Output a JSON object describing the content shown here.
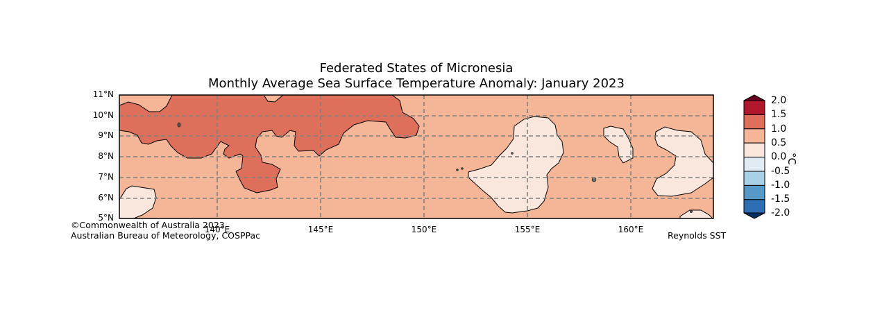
{
  "title_line1": "Federated States of Micronesia",
  "title_line2": "Monthly Average Sea Surface Temperature Anomaly: January 2023",
  "latitude_labels": [
    "11°N",
    "10°N",
    "9°N",
    "8°N",
    "7°N",
    "6°N",
    "5°N"
  ],
  "longitude_labels": [
    "140°E",
    "145°E",
    "150°E",
    "155°E",
    "160°E"
  ],
  "credit_line1": "©Commonwealth of Australia 2023",
  "credit_line2": "Australian Bureau of Meteorology, COSPPac",
  "dataset_label": "Reynolds SST",
  "colorbar": {
    "unit": "°C",
    "ticks": [
      "2.0",
      "1.5",
      "1.0",
      "0.5",
      "0.0",
      "-0.5",
      "-1.0",
      "-1.5",
      "-2.0"
    ],
    "colors": [
      "#b2182b",
      "#de6f5a",
      "#f5b697",
      "#f9e6dc",
      "#e1ebf3",
      "#a8d0e6",
      "#5599c8",
      "#2c6fb3"
    ],
    "over_color": "#67001f",
    "under_color": "#053061"
  },
  "map_extent": {
    "lon": [
      135.3,
      164.0
    ],
    "lat": [
      5,
      11
    ]
  },
  "colors": {
    "background_anomaly": "#f5b697",
    "high_anomaly": "#de6f5a",
    "low_anomaly": "#f9e6dc",
    "grid": "#808080"
  }
}
